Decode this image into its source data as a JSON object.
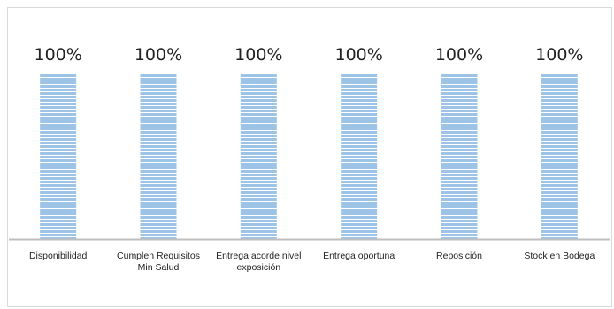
{
  "chart_data": {
    "type": "bar",
    "title": "",
    "xlabel": "",
    "ylabel": "",
    "ylim": [
      0,
      1
    ],
    "categories": [
      [
        "Disponibilidad"
      ],
      [
        "Cumplen Requisitos",
        "Min Salud"
      ],
      [
        "Entrega acorde nivel",
        "exposición"
      ],
      [
        "Entrega oportuna"
      ],
      [
        "Reposición"
      ],
      [
        "Stock en Bodega"
      ]
    ],
    "values": [
      1,
      1,
      1,
      1,
      1,
      1
    ],
    "data_labels": [
      "100%",
      "100%",
      "100%",
      "100%",
      "100%",
      "100%"
    ],
    "grid": false,
    "legend": "none",
    "colors": {
      "bar_fill": "#9dc3e6",
      "bar_stripe": "#ffffff",
      "axis": "#bfbfbf"
    }
  }
}
